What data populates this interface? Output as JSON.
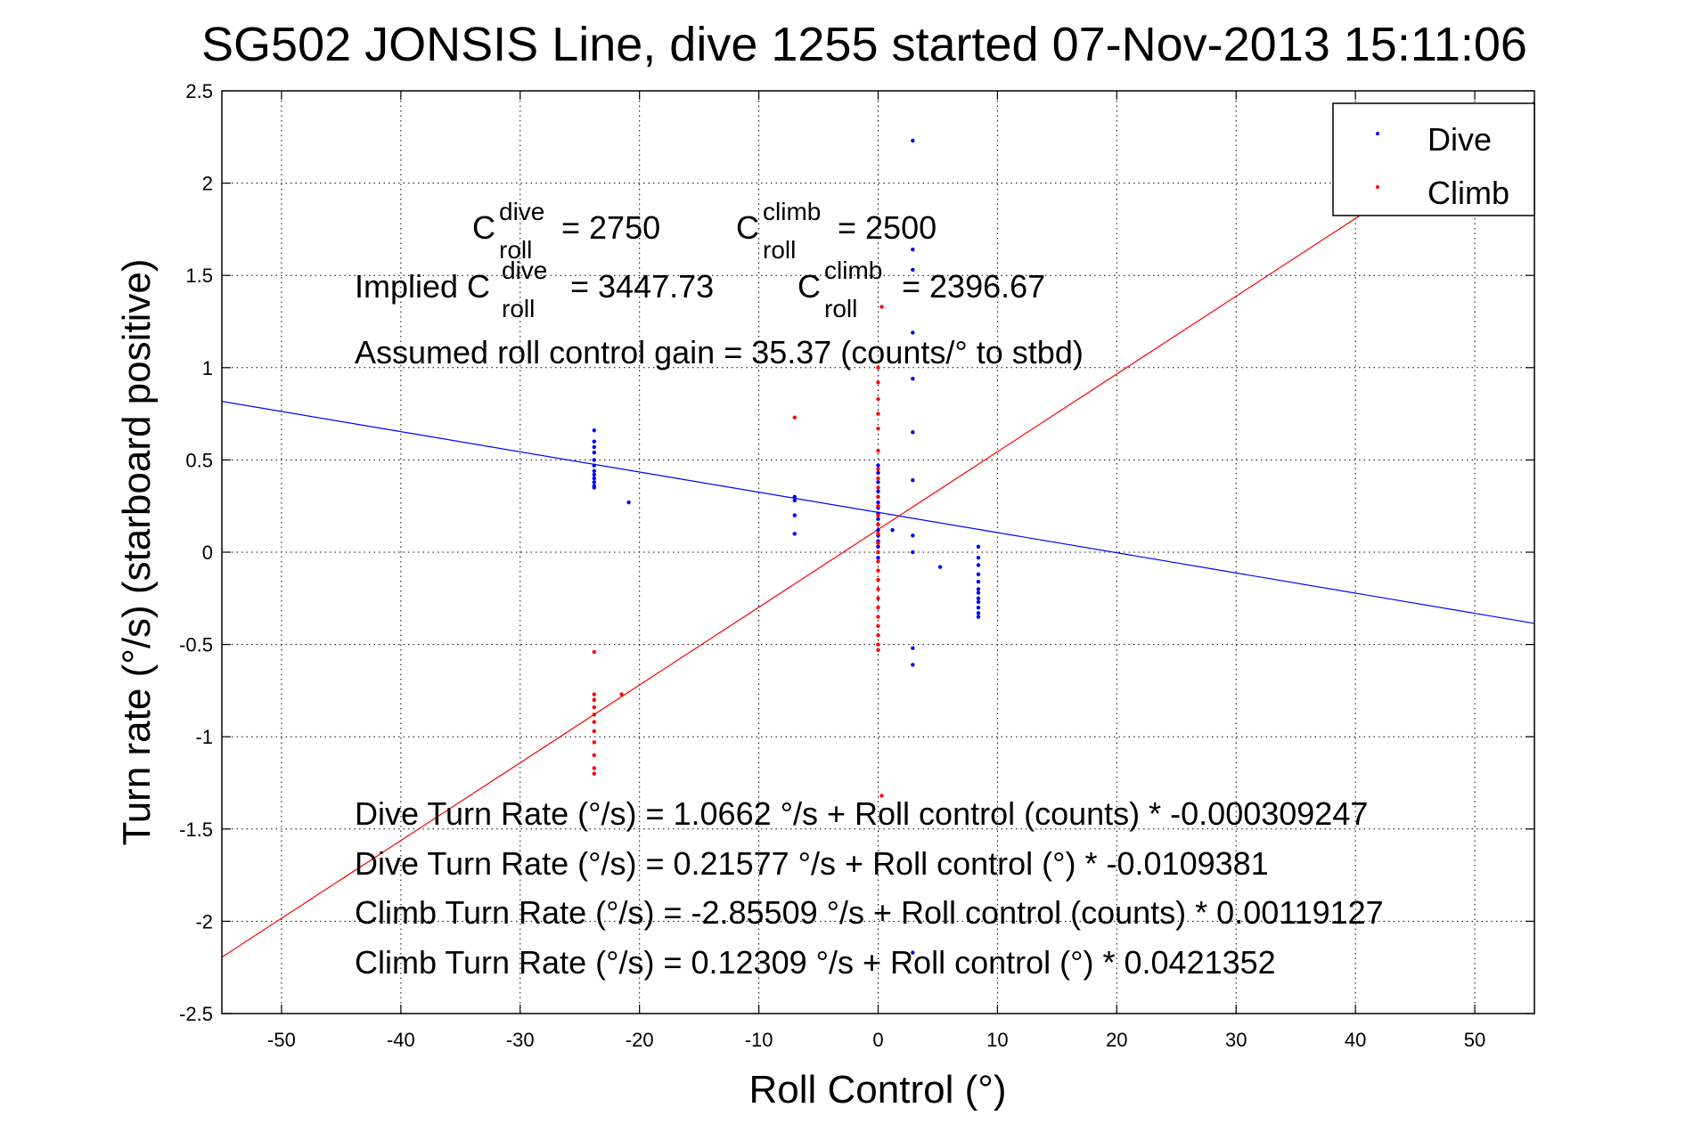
{
  "chart_data": {
    "type": "scatter",
    "title": "SG502 JONSIS Line, dive 1255 started 07-Nov-2013 15:11:06",
    "xlabel": "Roll Control (°)",
    "ylabel": "Turn rate (°/s) (starboard positive)",
    "xlim": [
      -55,
      55
    ],
    "ylim": [
      -2.5,
      2.5
    ],
    "xticks": [
      -50,
      -40,
      -30,
      -20,
      -10,
      0,
      10,
      20,
      30,
      40,
      50
    ],
    "yticks": [
      -2.5,
      -2,
      -1.5,
      -1,
      -0.5,
      0,
      0.5,
      1,
      1.5,
      2,
      2.5
    ],
    "xtick_labels": [
      "-50",
      "-40",
      "-30",
      "-20",
      "-10",
      "0",
      "10",
      "20",
      "30",
      "40",
      "50"
    ],
    "ytick_labels": [
      "-2.5",
      "-2",
      "-1.5",
      "-1",
      "-0.5",
      "0",
      "0.5",
      "1",
      "1.5",
      "2",
      "2.5"
    ],
    "grid": true,
    "legend_position": "top-right",
    "series": [
      {
        "name": "Dive",
        "color": "#0000ff",
        "points": [
          [
            -23.8,
            0.66
          ],
          [
            -23.8,
            0.6
          ],
          [
            -23.8,
            0.57
          ],
          [
            -23.8,
            0.54
          ],
          [
            -23.8,
            0.5
          ],
          [
            -23.8,
            0.47
          ],
          [
            -23.8,
            0.44
          ],
          [
            -23.8,
            0.42
          ],
          [
            -23.8,
            0.4
          ],
          [
            -23.8,
            0.38
          ],
          [
            -23.8,
            0.36
          ],
          [
            -23.8,
            0.35
          ],
          [
            -20.9,
            0.27
          ],
          [
            -7,
            0.3
          ],
          [
            -7,
            0.28
          ],
          [
            -7,
            0.2
          ],
          [
            -7,
            0.1
          ],
          [
            0,
            0.47
          ],
          [
            0,
            0.43
          ],
          [
            0,
            0.38
          ],
          [
            0,
            0.33
          ],
          [
            0,
            0.3
          ],
          [
            0,
            0.27
          ],
          [
            0,
            0.24
          ],
          [
            0,
            0.21
          ],
          [
            0,
            0.18
          ],
          [
            0,
            0.15
          ],
          [
            0,
            0.12
          ],
          [
            0,
            0.09
          ],
          [
            0,
            0.06
          ],
          [
            0,
            0.03
          ],
          [
            0,
            0.0
          ],
          [
            0,
            -0.03
          ],
          [
            1.2,
            0.12
          ],
          [
            2.9,
            2.23
          ],
          [
            2.9,
            1.64
          ],
          [
            2.9,
            1.53
          ],
          [
            2.9,
            1.19
          ],
          [
            2.9,
            0.94
          ],
          [
            2.9,
            0.65
          ],
          [
            2.9,
            0.39
          ],
          [
            2.9,
            0.09
          ],
          [
            2.9,
            0.0
          ],
          [
            2.9,
            -0.52
          ],
          [
            2.9,
            -0.61
          ],
          [
            2.9,
            -2.17
          ],
          [
            5.2,
            -0.08
          ],
          [
            8.4,
            0.03
          ],
          [
            8.4,
            -0.03
          ],
          [
            8.4,
            -0.07
          ],
          [
            8.4,
            -0.12
          ],
          [
            8.4,
            -0.16
          ],
          [
            8.4,
            -0.2
          ],
          [
            8.4,
            -0.22
          ],
          [
            8.4,
            -0.25
          ],
          [
            8.4,
            -0.27
          ],
          [
            8.4,
            -0.3
          ],
          [
            8.4,
            -0.33
          ],
          [
            8.4,
            -0.35
          ]
        ]
      },
      {
        "name": "Climb",
        "color": "#ff0000",
        "points": [
          [
            -23.8,
            -0.54
          ],
          [
            -23.8,
            -0.77
          ],
          [
            -23.8,
            -0.8
          ],
          [
            -23.8,
            -0.84
          ],
          [
            -23.8,
            -0.88
          ],
          [
            -23.8,
            -0.92
          ],
          [
            -23.8,
            -0.97
          ],
          [
            -23.8,
            -1.03
          ],
          [
            -23.8,
            -1.1
          ],
          [
            -23.8,
            -1.17
          ],
          [
            -23.8,
            -1.2
          ],
          [
            -21.5,
            -0.77
          ],
          [
            -7,
            0.73
          ],
          [
            0,
            1.0
          ],
          [
            0,
            0.92
          ],
          [
            0,
            0.83
          ],
          [
            0,
            0.75
          ],
          [
            0,
            0.67
          ],
          [
            0,
            0.55
          ],
          [
            0,
            0.45
          ],
          [
            0,
            0.4
          ],
          [
            0,
            0.35
          ],
          [
            0,
            0.3
          ],
          [
            0,
            0.25
          ],
          [
            0,
            0.2
          ],
          [
            0,
            0.15
          ],
          [
            0,
            0.1
          ],
          [
            0,
            0.05
          ],
          [
            0,
            0.0
          ],
          [
            0,
            -0.05
          ],
          [
            0,
            -0.1
          ],
          [
            0,
            -0.15
          ],
          [
            0,
            -0.2
          ],
          [
            0,
            -0.25
          ],
          [
            0,
            -0.3
          ],
          [
            0,
            -0.35
          ],
          [
            0,
            -0.4
          ],
          [
            0,
            -0.45
          ],
          [
            0,
            -0.5
          ],
          [
            0,
            -0.53
          ],
          [
            0.3,
            1.33
          ],
          [
            0.3,
            -1.32
          ]
        ]
      }
    ],
    "fit_lines": [
      {
        "name": "Dive",
        "color": "#0000ff",
        "intercept": 0.21577,
        "slope": -0.0109381
      },
      {
        "name": "Climb",
        "color": "#ff0000",
        "intercept": 0.12309,
        "slope": 0.0421352
      }
    ],
    "annotations": {
      "c_roll_dive_prefix": "C",
      "c_roll_dive_sup": "dive",
      "c_roll_dive_sub": "roll",
      "c_roll_dive_val": "= 2750",
      "c_roll_climb_prefix": "C",
      "c_roll_climb_sup": "climb",
      "c_roll_climb_sub": "roll",
      "c_roll_climb_val": "= 2500",
      "implied_prefix": "Implied C",
      "implied_dive_sup": "dive",
      "implied_dive_sub": "roll",
      "implied_dive_val": "= 3447.73",
      "implied_climb_prefix": "C",
      "implied_climb_sup": "climb",
      "implied_climb_sub": "roll",
      "implied_climb_val": "= 2396.67",
      "gain": "Assumed roll control gain = 35.37 (counts/° to stbd)",
      "eq1": "Dive Turn Rate (°/s) = 1.0662 °/s + Roll control (counts) * -0.000309247",
      "eq2": "Dive Turn Rate (°/s) = 0.21577 °/s + Roll control (°) * -0.0109381",
      "eq3": "Climb Turn Rate (°/s) = -2.85509 °/s + Roll control (counts) * 0.00119127",
      "eq4": "Climb Turn Rate (°/s) = 0.12309 °/s + Roll control (°) * 0.0421352"
    }
  }
}
